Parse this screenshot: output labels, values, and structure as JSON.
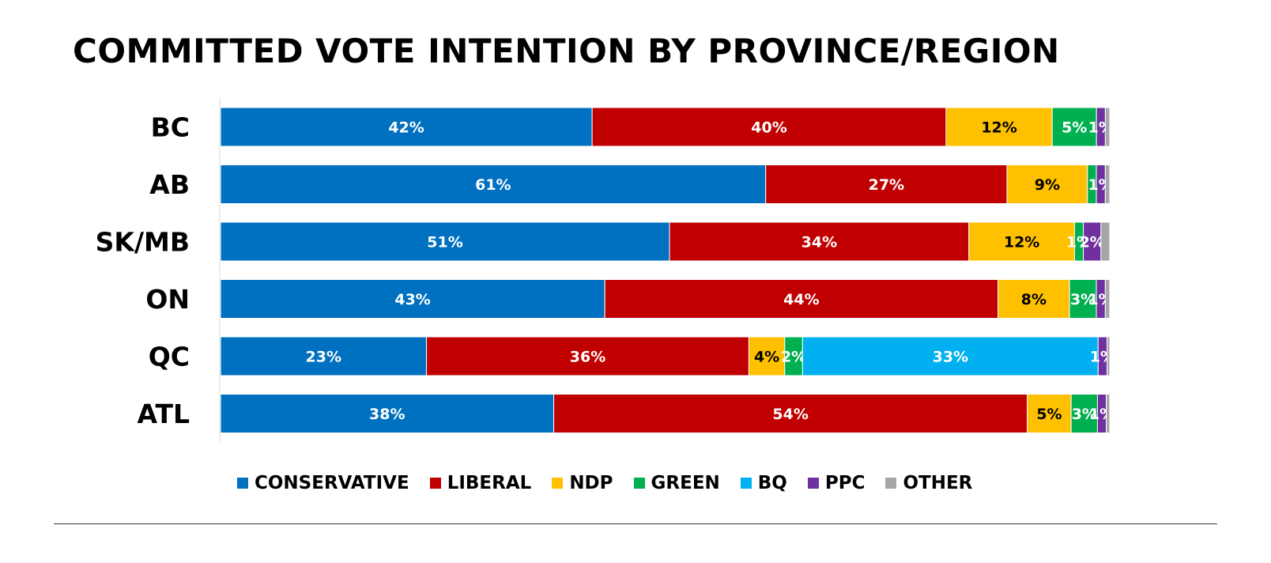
{
  "title": "COMMITTED VOTE INTENTION BY PROVINCE/REGION",
  "chart_data": {
    "type": "bar",
    "orientation": "horizontal",
    "stacked": true,
    "title": "COMMITTED VOTE INTENTION BY PROVINCE/REGION",
    "categories": [
      "BC",
      "AB",
      "SK/MB",
      "ON",
      "QC",
      "ATL"
    ],
    "series": [
      {
        "name": "CONSERVATIVE",
        "color": "#0070C0",
        "label_color": "#ffffff",
        "values": [
          42,
          61,
          51,
          43,
          23,
          38
        ],
        "labels": [
          "42%",
          "61%",
          "51%",
          "43%",
          "23%",
          "38%"
        ]
      },
      {
        "name": "LIBERAL",
        "color": "#C00000",
        "label_color": "#ffffff",
        "values": [
          40,
          27,
          34,
          44,
          36,
          54
        ],
        "labels": [
          "40%",
          "27%",
          "34%",
          "44%",
          "36%",
          "54%"
        ]
      },
      {
        "name": "NDP",
        "color": "#FFC000",
        "label_color": "#000000",
        "values": [
          12,
          9,
          12,
          8,
          4,
          5
        ],
        "labels": [
          "12%",
          "9%",
          "12%",
          "8%",
          "4%",
          "5%"
        ]
      },
      {
        "name": "GREEN",
        "color": "#00B050",
        "label_color": "#ffffff",
        "values": [
          5,
          1,
          1,
          3,
          2,
          3
        ],
        "labels": [
          "5%",
          "",
          "1%",
          "3%",
          "2%",
          "3%"
        ]
      },
      {
        "name": "BQ",
        "color": "#00B0F0",
        "label_color": "#ffffff",
        "values": [
          0,
          0,
          0,
          0,
          33,
          0
        ],
        "labels": [
          "",
          "",
          "",
          "",
          "33%",
          ""
        ]
      },
      {
        "name": "PPC",
        "color": "#7030A0",
        "label_color": "#ffffff",
        "values": [
          1,
          1,
          2,
          1,
          1,
          1
        ],
        "labels": [
          "1%",
          "1%",
          "2%",
          "1%",
          "1%",
          "1%"
        ]
      },
      {
        "name": "OTHER",
        "color": "#A6A6A6",
        "label_color": "#ffffff",
        "values": [
          0.5,
          0.5,
          1,
          0.5,
          0.3,
          0.4
        ],
        "labels": [
          "",
          "",
          "",
          "",
          "",
          ""
        ]
      }
    ],
    "legend": [
      "CONSERVATIVE",
      "LIBERAL",
      "NDP",
      "GREEN",
      "BQ",
      "PPC",
      "OTHER"
    ],
    "legend_position": "bottom",
    "xlabel": "",
    "ylabel": "",
    "grid": false
  }
}
